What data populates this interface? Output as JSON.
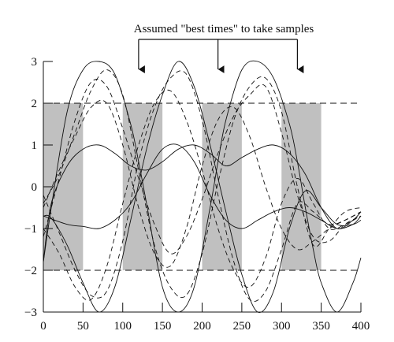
{
  "chart_data": {
    "type": "line",
    "title": "",
    "xlabel": "",
    "ylabel": "",
    "xlim": [
      0,
      400
    ],
    "ylim": [
      -3,
      3
    ],
    "x_ticks": [
      0,
      50,
      100,
      150,
      200,
      250,
      300,
      350,
      400
    ],
    "y_ticks": [
      3,
      2,
      1,
      0,
      -1,
      -2,
      -3
    ],
    "y_tick_labels": [
      "3",
      "2",
      "1",
      "0",
      "−1",
      "−2",
      "−3"
    ],
    "annotation": {
      "text": "Assumed \"best times\" to take samples",
      "arrow_x": [
        120,
        220,
        320
      ]
    },
    "shaded_bands": [
      [
        0,
        50
      ],
      [
        100,
        150
      ],
      [
        200,
        250
      ],
      [
        300,
        350
      ]
    ],
    "reference_lines": [
      2,
      -2
    ],
    "colors": {
      "shade": "#c0c0c0",
      "ink": "#111111"
    },
    "series": [
      {
        "style": "solid",
        "x": [
          0,
          10,
          30,
          50,
          70,
          90,
          110,
          120,
          130,
          150,
          170,
          190,
          210,
          220,
          230,
          250,
          270,
          290,
          310,
          320,
          330,
          340,
          350,
          370,
          390,
          400
        ],
        "values": [
          -1.8,
          -0.5,
          1.8,
          2.8,
          3.0,
          2.7,
          1.5,
          0.6,
          -0.4,
          -2.4,
          -3.0,
          -2.4,
          -0.5,
          0.6,
          1.6,
          2.8,
          3.0,
          2.6,
          1.5,
          0.6,
          -0.5,
          -1.5,
          -2.3,
          -3.0,
          -2.3,
          -1.7
        ]
      },
      {
        "style": "solid",
        "x": [
          0,
          10,
          30,
          50,
          70,
          90,
          110,
          130,
          150,
          170,
          190,
          210,
          230,
          250,
          270,
          290,
          310,
          330,
          350,
          370,
          390,
          400
        ],
        "values": [
          -1.8,
          -0.4,
          0.5,
          0.9,
          1.0,
          0.8,
          0.5,
          0.4,
          0.6,
          0.9,
          1.0,
          0.8,
          0.5,
          0.7,
          0.9,
          1.0,
          0.8,
          0.3,
          -0.5,
          -1.0,
          -0.8,
          -0.6
        ]
      },
      {
        "style": "solid",
        "x": [
          0,
          30,
          50,
          70,
          90,
          110,
          130,
          150,
          170,
          190,
          210,
          230,
          250,
          270,
          290,
          310,
          330,
          350,
          370,
          390,
          400
        ],
        "values": [
          -0.7,
          -0.9,
          -0.95,
          -1.0,
          -0.8,
          -0.4,
          0.3,
          0.9,
          1.0,
          0.6,
          -0.2,
          -0.8,
          -1.0,
          -0.8,
          -0.6,
          -0.5,
          -0.6,
          -0.8,
          -1.0,
          -0.9,
          -0.7
        ]
      },
      {
        "style": "solid",
        "x": [
          0,
          10,
          30,
          50,
          70,
          90,
          110,
          130,
          150,
          170,
          190,
          210,
          230,
          250,
          270,
          290,
          310,
          330,
          350,
          370,
          390,
          400
        ],
        "values": [
          -0.7,
          -0.75,
          -1.4,
          -2.3,
          -3.0,
          -2.4,
          -0.8,
          0.9,
          2.2,
          3.0,
          2.4,
          1.0,
          -0.6,
          -2.1,
          -3.0,
          -2.5,
          -1.0,
          -0.1,
          -0.5,
          -0.9,
          -0.9,
          -0.8
        ]
      },
      {
        "style": "dashed",
        "x": [
          0,
          20,
          40,
          60,
          80,
          100,
          120,
          140,
          160,
          180,
          200,
          220,
          240,
          260,
          280,
          300,
          320,
          340,
          360,
          380,
          400
        ],
        "values": [
          -0.4,
          0.3,
          1.3,
          2.3,
          2.8,
          2.2,
          0.4,
          -1.4,
          -2.4,
          -2.6,
          -1.6,
          0.1,
          1.6,
          2.4,
          2.6,
          1.8,
          0.0,
          -1.4,
          -1.0,
          -0.6,
          -0.5
        ]
      },
      {
        "style": "dashed",
        "x": [
          0,
          20,
          40,
          60,
          80,
          100,
          120,
          140,
          160,
          180,
          200,
          220,
          240,
          260,
          280,
          300,
          320,
          340,
          360,
          380,
          400
        ],
        "values": [
          -0.2,
          -1.1,
          -2.0,
          -2.6,
          -2.5,
          -1.3,
          0.6,
          1.9,
          2.6,
          2.7,
          1.6,
          -0.2,
          -1.8,
          -2.7,
          -2.5,
          -1.5,
          -0.4,
          -0.6,
          -0.9,
          -0.8,
          -0.6
        ]
      },
      {
        "style": "dashed",
        "x": [
          0,
          20,
          40,
          60,
          80,
          100,
          120,
          140,
          160,
          180,
          200,
          220,
          240,
          260,
          280,
          300,
          320,
          340,
          360,
          380,
          400
        ],
        "values": [
          -1.2,
          0.2,
          1.6,
          2.5,
          2.4,
          1.4,
          0.2,
          -0.9,
          -1.6,
          -1.2,
          -0.3,
          0.8,
          1.7,
          2.2,
          2.4,
          1.3,
          -0.2,
          -1.2,
          -1.3,
          -0.9,
          -0.7
        ]
      },
      {
        "style": "dashed",
        "x": [
          0,
          20,
          40,
          60,
          80,
          100,
          120,
          140,
          160,
          180,
          200,
          220,
          240,
          260,
          280,
          300,
          320,
          340,
          360,
          380,
          400
        ],
        "values": [
          -1.0,
          -1.6,
          -2.4,
          -2.7,
          -1.9,
          -0.4,
          1.0,
          2.0,
          2.3,
          1.6,
          0.4,
          -1.0,
          -2.0,
          -2.4,
          -1.7,
          -0.4,
          0.2,
          -0.4,
          -1.0,
          -0.9,
          -0.7
        ]
      },
      {
        "style": "dashed",
        "x": [
          0,
          20,
          40,
          60,
          80,
          100,
          120,
          140,
          160,
          180,
          200,
          220,
          240,
          260,
          280,
          300,
          320,
          340,
          360,
          380,
          400
        ],
        "values": [
          -0.5,
          0.4,
          1.2,
          1.9,
          2.0,
          1.0,
          -0.5,
          -1.6,
          -1.9,
          -1.0,
          0.5,
          1.6,
          1.9,
          1.2,
          0.0,
          -1.0,
          -1.5,
          -1.3,
          -1.0,
          -0.8,
          -0.6
        ]
      }
    ]
  }
}
